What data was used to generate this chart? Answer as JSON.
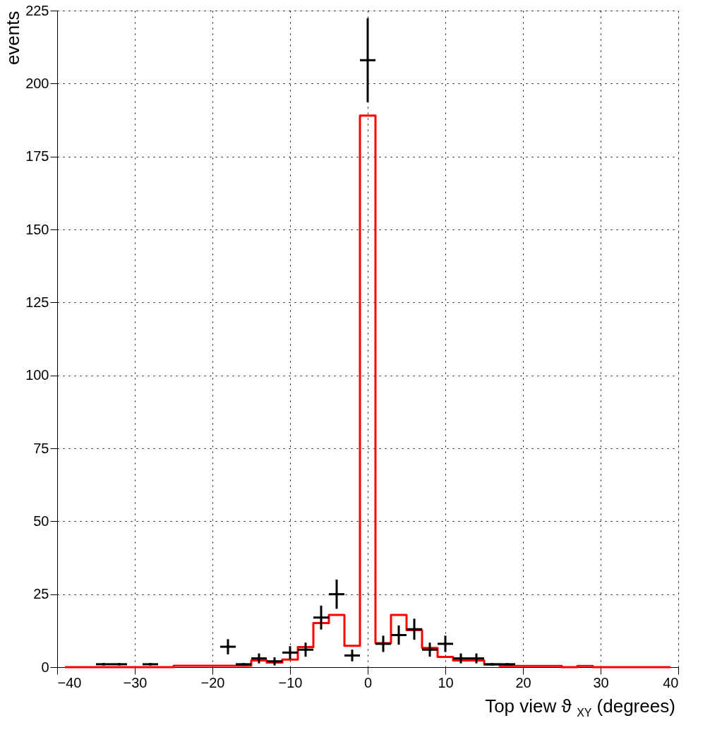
{
  "chart_data": {
    "type": "histogram",
    "xlabel": "Top view ϑ$_{XY}$ (degrees)",
    "ylabel": "events",
    "xlim": [
      -40,
      40
    ],
    "xticks": [
      -40,
      -30,
      -20,
      -10,
      0,
      10,
      20,
      30,
      40
    ],
    "ylim": [
      0,
      225
    ],
    "yticks": [
      0,
      25,
      50,
      75,
      100,
      125,
      150,
      175,
      200,
      225
    ],
    "grid": true,
    "series": [
      {
        "color": "#ff0000",
        "bins": [
          -39,
          -37,
          -35,
          -33,
          -31,
          -29,
          -27,
          -25,
          -23,
          -21,
          -19,
          -17,
          -15,
          -13,
          -11,
          -9,
          -7,
          -5,
          -3,
          -1,
          1,
          3,
          5,
          7,
          9,
          11,
          13,
          15,
          17,
          19,
          21,
          23,
          25,
          27,
          29,
          31,
          33,
          35,
          37,
          39
        ],
        "values": [
          0,
          0,
          0,
          0,
          0,
          0,
          0,
          0.5,
          0.5,
          0.5,
          0.5,
          0.5,
          2.3,
          1.6,
          2.6,
          6.9,
          15.1,
          17.9,
          7.3,
          189,
          8.2,
          17.9,
          12.7,
          6.6,
          3.5,
          2.3,
          2.3,
          0.9,
          0.4,
          0.4,
          0.4,
          0.4,
          0,
          0.4,
          0,
          0,
          0,
          0,
          0
        ]
      },
      {
        "type": "scatter",
        "color": "#000000",
        "marker": "square",
        "x": [
          -34,
          -32,
          -28,
          -18,
          -16,
          -14,
          -12,
          -10,
          -8,
          -6,
          -4,
          -2,
          0,
          2,
          4,
          6,
          8,
          10,
          12,
          14,
          16,
          18
        ],
        "values": [
          1,
          1,
          1,
          7,
          1,
          3,
          2,
          5,
          6,
          17,
          25,
          4,
          208,
          8,
          11,
          13,
          6,
          8,
          3,
          3,
          1,
          1
        ],
        "errors": [
          null,
          null,
          null,
          2.6,
          null,
          1.7,
          1.4,
          2.2,
          2.4,
          4.1,
          5,
          2,
          14.4,
          2.8,
          3.3,
          3.6,
          2.4,
          2.8,
          1.7,
          1.7,
          null,
          null
        ],
        "xerrors": [
          1,
          1,
          1,
          1,
          1,
          1,
          1,
          1,
          1,
          1,
          1,
          1,
          1,
          1,
          1,
          1,
          1,
          1,
          1,
          1,
          1,
          1
        ]
      }
    ]
  }
}
